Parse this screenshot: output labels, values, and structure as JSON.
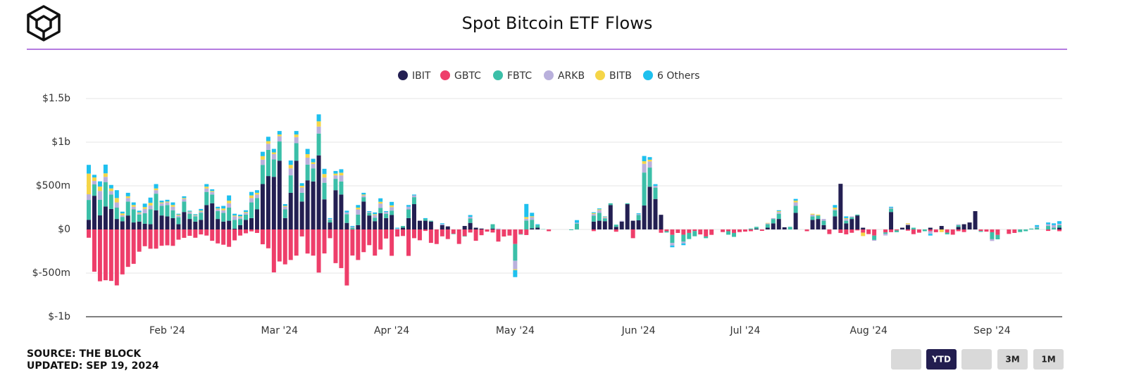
{
  "chart_data": {
    "type": "stacked_bar",
    "title": "Spot Bitcoin ETF Flows",
    "categories": [
      null,
      null,
      null,
      null,
      null,
      null,
      null,
      null,
      null,
      null,
      null,
      null,
      null,
      null,
      "Feb '24",
      null,
      null,
      null,
      null,
      null,
      null,
      null,
      null,
      null,
      null,
      null,
      null,
      null,
      null,
      null,
      null,
      null,
      null,
      null,
      "Mar '24",
      null,
      null,
      null,
      null,
      null,
      null,
      null,
      null,
      null,
      null,
      null,
      null,
      null,
      null,
      null,
      null,
      null,
      null,
      null,
      "Apr '24",
      null,
      null,
      null,
      null,
      null,
      null,
      null,
      null,
      null,
      null,
      null,
      null,
      null,
      null,
      null,
      null,
      null,
      null,
      null,
      null,
      null,
      "May '24",
      null,
      null,
      null,
      null,
      null,
      null,
      null,
      null,
      null,
      null,
      null,
      null,
      null,
      null,
      null,
      null,
      null,
      null,
      null,
      null,
      null,
      "Jun '24",
      null,
      null,
      null,
      null,
      null,
      null,
      null,
      null,
      null,
      null,
      null,
      null,
      null,
      null,
      null,
      null,
      null,
      null,
      "Jul '24",
      null,
      null,
      null,
      null,
      null,
      null,
      null,
      null,
      null,
      null,
      null,
      null,
      null,
      null,
      null,
      null,
      null,
      null,
      null,
      null,
      null,
      "Aug '24",
      null,
      null,
      null,
      null,
      null,
      null,
      null,
      null,
      null,
      null,
      null,
      null,
      null,
      null,
      null,
      null,
      null,
      null,
      null,
      null,
      null,
      "Sep '24",
      null,
      null,
      null,
      null,
      null,
      null,
      null,
      null,
      null,
      null,
      null,
      null
    ],
    "series": [
      {
        "name": "IBIT",
        "color": "#231f52",
        "values": [
          111,
          386,
          161,
          263,
          235,
          120,
          94,
          160,
          80,
          90,
          66,
          60,
          220,
          160,
          150,
          130,
          60,
          200,
          120,
          90,
          110,
          280,
          300,
          120,
          90,
          100,
          10,
          50,
          110,
          130,
          230,
          520,
          612,
          603,
          788,
          130,
          420,
          788,
          320,
          563,
          550,
          849,
          345,
          80,
          450,
          400,
          75,
          0,
          50,
          320,
          160,
          95,
          187,
          130,
          166,
          0,
          20,
          130,
          290,
          100,
          100,
          90,
          0,
          50,
          35,
          0,
          0,
          40,
          75,
          20,
          10,
          0,
          10,
          0,
          0,
          0,
          0,
          0,
          0,
          12,
          20,
          0,
          0,
          0,
          0,
          0,
          0,
          0,
          0,
          0,
          90,
          100,
          95,
          280,
          30,
          90,
          290,
          100,
          105,
          274,
          489,
          349,
          168,
          0,
          0,
          0,
          0,
          0,
          0,
          0,
          0,
          0,
          0,
          0,
          0,
          0,
          0,
          0,
          0,
          10,
          0,
          20,
          70,
          120,
          25,
          0,
          190,
          0,
          0,
          110,
          120,
          50,
          0,
          150,
          523,
          70,
          120,
          160,
          20,
          0,
          0,
          0,
          0,
          200,
          0,
          20,
          50,
          0,
          0,
          0,
          20,
          0,
          40,
          0,
          0,
          30,
          60,
          80,
          210,
          0,
          0,
          0,
          0,
          0,
          0,
          0,
          0,
          0,
          0,
          0,
          0,
          0,
          0,
          20
        ]
      },
      {
        "name": "GBTC",
        "color": "#ee3e6a",
        "values": [
          -95,
          -484,
          -594,
          -582,
          -590,
          -641,
          -515,
          -429,
          -394,
          -255,
          -192,
          -221,
          -220,
          -187,
          -182,
          -188,
          -117,
          -96,
          -73,
          -95,
          -57,
          -70,
          -130,
          -160,
          -175,
          -199,
          -125,
          -70,
          -44,
          -22,
          -40,
          -170,
          -216,
          -492,
          -367,
          -400,
          -350,
          -300,
          -80,
          -276,
          -300,
          -494,
          -275,
          -100,
          -386,
          -443,
          -642,
          -299,
          -350,
          -260,
          -180,
          -300,
          -230,
          -104,
          -302,
          -81,
          -75,
          -303,
          -100,
          -124,
          -17,
          -154,
          -167,
          -79,
          -110,
          -50,
          -166,
          -76,
          -35,
          -130,
          -66,
          -25,
          -35,
          -139,
          -81,
          -70,
          -167,
          -54,
          -64,
          0,
          0,
          0,
          -20,
          0,
          0,
          0,
          0,
          0,
          0,
          0,
          -19,
          0,
          0,
          0,
          -26,
          0,
          0,
          -100,
          0,
          0,
          0,
          0,
          -38,
          -20,
          -62,
          -40,
          -60,
          -40,
          -18,
          -57,
          -80,
          -62,
          0,
          -30,
          -20,
          -40,
          -30,
          -25,
          -20,
          0,
          -16,
          0,
          0,
          0,
          0,
          0,
          0,
          0,
          -20,
          0,
          0,
          0,
          -53,
          0,
          -40,
          -56,
          -38,
          -11,
          -36,
          -53,
          -70,
          0,
          -34,
          -31,
          -11,
          0,
          -14,
          -54,
          -37,
          0,
          -20,
          -32,
          0,
          -36,
          -60,
          -20,
          -30,
          0,
          0,
          -18,
          -25,
          -32,
          -63,
          0,
          -51,
          -40,
          0,
          0,
          0,
          0,
          0,
          -17,
          0,
          -20
        ]
      },
      {
        "name": "FBTC",
        "color": "#3bbfa8",
        "values": [
          227,
          130,
          180,
          280,
          165,
          130,
          50,
          160,
          150,
          80,
          120,
          170,
          190,
          110,
          130,
          90,
          80,
          120,
          60,
          60,
          80,
          150,
          100,
          90,
          100,
          150,
          100,
          70,
          60,
          180,
          130,
          220,
          300,
          200,
          220,
          100,
          200,
          200,
          100,
          180,
          150,
          250,
          190,
          30,
          130,
          150,
          100,
          20,
          120,
          50,
          30,
          40,
          60,
          50,
          50,
          0,
          20,
          100,
          80,
          0,
          20,
          10,
          0,
          0,
          0,
          -5,
          0,
          -5,
          50,
          0,
          0,
          0,
          50,
          0,
          0,
          0,
          -191,
          -5,
          102,
          99,
          30,
          3,
          0,
          0,
          0,
          0,
          -8,
          67,
          0,
          0,
          67,
          91,
          30,
          20,
          25,
          0,
          10,
          0,
          60,
          378,
          220,
          130,
          0,
          -15,
          -92,
          0,
          -80,
          -70,
          -60,
          0,
          -20,
          0,
          0,
          0,
          -40,
          -45,
          0,
          0,
          10,
          20,
          0,
          40,
          50,
          60,
          0,
          30,
          80,
          0,
          0,
          40,
          40,
          50,
          0,
          70,
          0,
          30,
          20,
          10,
          0,
          0,
          -50,
          0,
          -15,
          40,
          -20,
          0,
          0,
          20,
          0,
          -20,
          0,
          0,
          0,
          -20,
          0,
          20,
          0,
          0,
          0,
          -10,
          0,
          -80,
          -50,
          0,
          0,
          0,
          -30,
          -20,
          10,
          20,
          0,
          40,
          20,
          30
        ]
      },
      {
        "name": "ARKB",
        "color": "#b9b0dc",
        "values": [
          65,
          40,
          100,
          60,
          40,
          60,
          20,
          40,
          30,
          15,
          50,
          45,
          40,
          30,
          30,
          40,
          20,
          30,
          20,
          10,
          15,
          40,
          30,
          20,
          30,
          50,
          40,
          20,
          20,
          50,
          40,
          60,
          70,
          60,
          60,
          30,
          80,
          70,
          60,
          80,
          50,
          80,
          60,
          10,
          40,
          70,
          20,
          10,
          60,
          20,
          10,
          30,
          50,
          20,
          40,
          10,
          0,
          30,
          20,
          0,
          0,
          0,
          0,
          10,
          0,
          0,
          0,
          0,
          20,
          0,
          0,
          0,
          0,
          10,
          0,
          0,
          -98,
          0,
          20,
          30,
          0,
          0,
          0,
          0,
          0,
          0,
          0,
          10,
          0,
          0,
          20,
          30,
          15,
          0,
          0,
          10,
          0,
          0,
          10,
          100,
          70,
          20,
          0,
          0,
          -30,
          0,
          -20,
          0,
          0,
          0,
          0,
          0,
          0,
          0,
          0,
          0,
          0,
          0,
          0,
          0,
          0,
          10,
          10,
          20,
          0,
          0,
          40,
          0,
          0,
          20,
          0,
          20,
          0,
          10,
          0,
          20,
          10,
          0,
          0,
          0,
          -10,
          0,
          -20,
          10,
          0,
          0,
          10,
          0,
          0,
          0,
          -30,
          0,
          0,
          0,
          0,
          10,
          0,
          0,
          0,
          0,
          0,
          -20,
          0,
          0,
          0,
          0,
          0,
          0,
          0,
          10,
          0,
          20,
          30,
          15
        ]
      },
      {
        "name": "BITB",
        "color": "#f5d547",
        "values": [
          237,
          40,
          50,
          40,
          30,
          50,
          20,
          20,
          20,
          10,
          20,
          30,
          20,
          10,
          10,
          20,
          10,
          10,
          5,
          5,
          10,
          20,
          10,
          10,
          20,
          30,
          10,
          10,
          10,
          30,
          20,
          40,
          30,
          20,
          20,
          10,
          40,
          30,
          20,
          40,
          20,
          60,
          40,
          0,
          20,
          30,
          0,
          0,
          20,
          10,
          0,
          10,
          20,
          0,
          20,
          0,
          0,
          0,
          0,
          0,
          0,
          0,
          0,
          0,
          0,
          0,
          0,
          0,
          0,
          0,
          0,
          0,
          0,
          0,
          0,
          0,
          -10,
          0,
          20,
          10,
          0,
          0,
          0,
          0,
          0,
          0,
          0,
          0,
          0,
          0,
          10,
          10,
          5,
          0,
          0,
          0,
          0,
          0,
          0,
          30,
          20,
          0,
          0,
          0,
          0,
          0,
          0,
          0,
          0,
          0,
          0,
          0,
          0,
          0,
          0,
          0,
          0,
          0,
          0,
          0,
          0,
          5,
          0,
          10,
          0,
          0,
          20,
          0,
          0,
          10,
          10,
          0,
          0,
          20,
          0,
          10,
          0,
          0,
          -40,
          0,
          0,
          0,
          0,
          0,
          0,
          0,
          10,
          0,
          0,
          0,
          0,
          0,
          -30,
          0,
          0,
          0,
          0,
          0,
          0,
          0,
          0,
          0,
          0,
          0,
          0,
          0,
          0,
          0,
          0,
          0,
          0,
          0,
          0,
          0
        ]
      },
      {
        "name": "6 Others",
        "color": "#1ec0ee",
        "values": [
          100,
          30,
          60,
          100,
          40,
          90,
          20,
          40,
          30,
          20,
          40,
          60,
          50,
          20,
          20,
          30,
          10,
          20,
          10,
          10,
          20,
          30,
          20,
          20,
          30,
          60,
          20,
          20,
          20,
          40,
          30,
          50,
          50,
          40,
          40,
          20,
          50,
          40,
          30,
          60,
          40,
          80,
          60,
          10,
          30,
          40,
          20,
          10,
          30,
          20,
          10,
          20,
          40,
          10,
          40,
          10,
          0,
          20,
          10,
          0,
          10,
          0,
          0,
          10,
          0,
          0,
          0,
          0,
          20,
          0,
          0,
          0,
          0,
          0,
          0,
          0,
          -80,
          0,
          150,
          40,
          10,
          0,
          0,
          0,
          0,
          0,
          0,
          30,
          0,
          0,
          10,
          10,
          5,
          0,
          0,
          0,
          0,
          0,
          10,
          60,
          30,
          20,
          0,
          0,
          -20,
          0,
          -20,
          0,
          0,
          0,
          0,
          0,
          0,
          0,
          0,
          0,
          0,
          0,
          0,
          0,
          0,
          0,
          0,
          10,
          0,
          0,
          20,
          0,
          0,
          0,
          0,
          0,
          0,
          30,
          0,
          20,
          0,
          0,
          0,
          0,
          0,
          0,
          0,
          10,
          0,
          0,
          0,
          0,
          0,
          0,
          -20,
          0,
          0,
          0,
          0,
          0,
          0,
          0,
          0,
          0,
          0,
          0,
          0,
          0,
          0,
          0,
          0,
          0,
          0,
          20,
          0,
          20,
          20,
          30
        ]
      }
    ],
    "ylim": [
      -1000,
      1500
    ],
    "yticks": [
      {
        "value": -1000,
        "label": "$-1b"
      },
      {
        "value": -500,
        "label": "$-500m"
      },
      {
        "value": 0,
        "label": "$0"
      },
      {
        "value": 500,
        "label": "$500m"
      },
      {
        "value": 1000,
        "label": "$1b"
      },
      {
        "value": 1500,
        "label": "$1.5b"
      }
    ],
    "grid": true,
    "legend": "top"
  },
  "source": "SOURCE: THE BLOCK",
  "updated": "UPDATED: SEP 19, 2024",
  "buttons": [
    "YTD",
    "3M",
    "1M"
  ]
}
